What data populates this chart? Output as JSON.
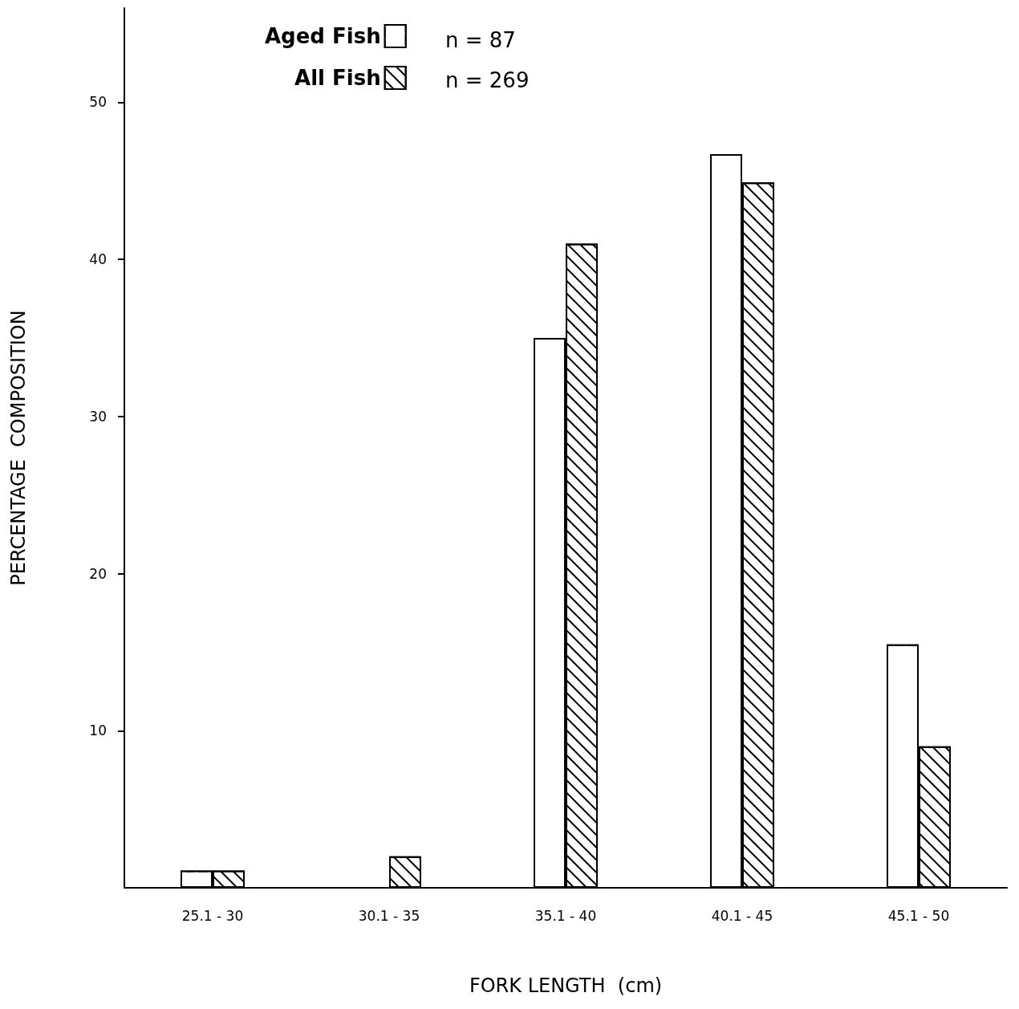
{
  "chart_data": {
    "type": "bar",
    "xlabel": "FORK LENGTH  (cm)",
    "ylabel": "PERCENTAGE  COMPOSITION",
    "categories": [
      "25.1 - 30",
      "30.1 - 35",
      "35.1 - 40",
      "40.1 - 45",
      "45.1 - 50"
    ],
    "series": [
      {
        "name": "Aged Fish",
        "color": "#ffffff",
        "values": [
          1.1,
          null,
          35.0,
          46.7,
          15.5
        ]
      },
      {
        "name": "All Fish",
        "color": "#000000",
        "values": [
          1.1,
          2.0,
          41.0,
          44.9,
          9.0
        ]
      }
    ],
    "ylim": [
      0,
      56
    ],
    "yticks": [
      10,
      20,
      30,
      40,
      50
    ],
    "annotations": [
      "n = 87",
      "n = 269"
    ],
    "legend": "top left",
    "grid": false
  }
}
